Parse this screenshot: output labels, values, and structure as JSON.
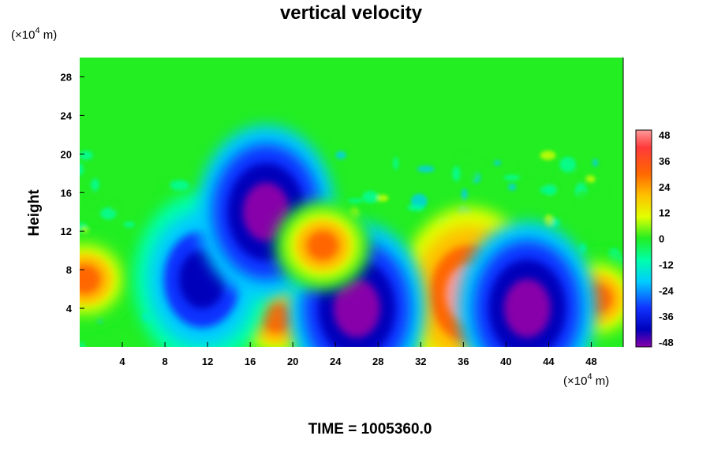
{
  "chart_data": {
    "type": "heatmap",
    "title": "vertical velocity",
    "ylabel": "Height",
    "x_unit": {
      "prefix": "(×10",
      "exp": "4",
      "suffix": " m)"
    },
    "y_unit": {
      "prefix": "(×10",
      "exp": "4",
      "suffix": " m)"
    },
    "xlim": [
      0,
      51
    ],
    "ylim": [
      0,
      30
    ],
    "x_ticks": [
      "4",
      "8",
      "12",
      "16",
      "20",
      "24",
      "28",
      "32",
      "36",
      "40",
      "44",
      "48"
    ],
    "y_ticks": [
      "4",
      "8",
      "12",
      "16",
      "20",
      "24",
      "28"
    ],
    "colorbar": {
      "range": [
        -48,
        48
      ],
      "tick_labels": [
        "48",
        "36",
        "24",
        "12",
        "0",
        "-12",
        "-24",
        "-36",
        "-48"
      ]
    },
    "background_value": 0,
    "features": [
      {
        "x": 0.5,
        "y": 7,
        "value": 32
      },
      {
        "x": 36.5,
        "y": 5.5,
        "value": 48
      },
      {
        "x": 48.5,
        "y": 5,
        "value": 34
      },
      {
        "x": 18.5,
        "y": 3,
        "value": 36
      },
      {
        "x": 26,
        "y": 4,
        "value": -48
      },
      {
        "x": 42,
        "y": 4,
        "value": -48
      },
      {
        "x": 11.5,
        "y": 7,
        "value": -40
      },
      {
        "x": 17.5,
        "y": 14,
        "value": -46
      },
      {
        "x": 22.8,
        "y": 10.5,
        "value": 30
      }
    ],
    "footer": "TIME = 1005360.0"
  }
}
